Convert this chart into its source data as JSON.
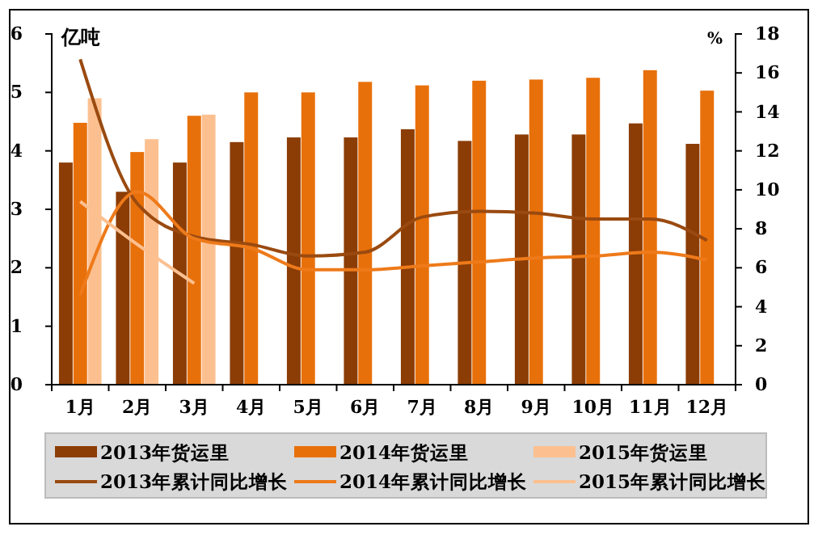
{
  "chart_data": {
    "type": "bar",
    "ylabel": "亿吨",
    "y2label": "%",
    "categories": [
      "1月",
      "2月",
      "3月",
      "4月",
      "5月",
      "6月",
      "7月",
      "8月",
      "9月",
      "10月",
      "11月",
      "12月"
    ],
    "series": [
      {
        "name": "2013年货运里",
        "color": "#8b3d05",
        "values": [
          3.8,
          3.3,
          3.8,
          4.15,
          4.23,
          4.23,
          4.37,
          4.17,
          4.28,
          4.28,
          4.47,
          4.12
        ]
      },
      {
        "name": "2014年货运里",
        "color": "#e8700a",
        "values": [
          4.48,
          3.98,
          4.6,
          5.0,
          5.0,
          5.18,
          5.12,
          5.2,
          5.22,
          5.25,
          5.38,
          5.03
        ]
      },
      {
        "name": "2015年货运里",
        "color": "#fcc090",
        "values": [
          4.9,
          4.2,
          4.62,
          null,
          null,
          null,
          null,
          null,
          null,
          null,
          null,
          null
        ]
      },
      {
        "name": "2013年累计同比增长",
        "type": "line",
        "axis": "y2",
        "color": "#9a4a10",
        "values": [
          16.7,
          9.3,
          7.6,
          7.2,
          6.6,
          6.8,
          8.6,
          8.9,
          8.8,
          8.5,
          8.5,
          7.4
        ]
      },
      {
        "name": "2014年累计同比增长",
        "type": "line",
        "axis": "y2",
        "color": "#ee7a1a",
        "values": [
          4.6,
          9.9,
          7.5,
          7.0,
          5.9,
          5.9,
          6.1,
          6.3,
          6.5,
          6.6,
          6.8,
          6.4
        ]
      },
      {
        "name": "2015年累计同比增长",
        "type": "line",
        "axis": "y2",
        "color": "#fcc090",
        "values": [
          9.4,
          7.2,
          5.2,
          null,
          null,
          null,
          null,
          null,
          null,
          null,
          null,
          null
        ]
      }
    ],
    "ylim": [
      0,
      6
    ],
    "yticks": [
      0,
      1,
      2,
      3,
      4,
      5,
      6
    ],
    "y2lim": [
      0,
      18
    ],
    "y2ticks": [
      0,
      2,
      4,
      6,
      8,
      10,
      12,
      14,
      16,
      18
    ],
    "grid": false,
    "legend": "bottom",
    "marker": "none",
    "line_style": "solid"
  }
}
